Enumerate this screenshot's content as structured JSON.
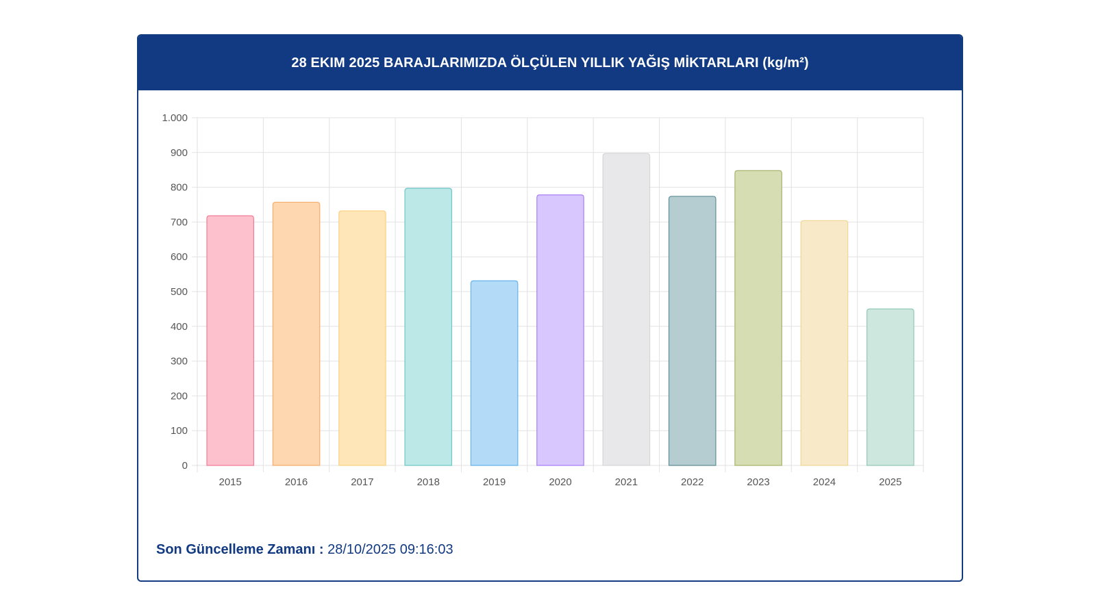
{
  "colors": {
    "header_bg": "#113a82",
    "grid": "#e2e2e2",
    "axis_text": "#555555"
  },
  "footer": {
    "label": "Son Güncelleme Zamanı :",
    "value": "28/10/2025 09:16:03"
  },
  "chart_data": {
    "type": "bar",
    "title": "28 EKIM 2025 BARAJLARIMIZDA ÖLÇÜLEN YILLIK YAĞIŞ MİKTARLARI (kg/m²)",
    "categories": [
      "2015",
      "2016",
      "2017",
      "2018",
      "2019",
      "2020",
      "2021",
      "2022",
      "2023",
      "2024",
      "2025"
    ],
    "values": [
      718,
      757,
      732,
      797,
      531,
      778,
      897,
      774,
      848,
      704,
      450
    ],
    "ylim": [
      0,
      1000
    ],
    "ytick_values": [
      0,
      100,
      200,
      300,
      400,
      500,
      600,
      700,
      800,
      900,
      1000
    ],
    "ytick_labels": [
      "0",
      "100",
      "200",
      "300",
      "400",
      "500",
      "600",
      "700",
      "800",
      "900",
      "1.000"
    ],
    "xlabel": "",
    "ylabel": "",
    "grid": true,
    "bar_fills": [
      "#fdc0cd",
      "#fed7b0",
      "#fee6b9",
      "#bde8e8",
      "#b3dbf8",
      "#d8c7fe",
      "#e8e8ea",
      "#b5cdd1",
      "#d7ddb3",
      "#f8e9c8",
      "#cde6de"
    ],
    "bar_strokes": [
      "#f37c97",
      "#f7ad6a",
      "#f9d285",
      "#6dc8c8",
      "#64b3ec",
      "#a97ef5",
      "#d6d6d8",
      "#5f8e95",
      "#a7b36d",
      "#f0d698",
      "#93c9b6"
    ]
  }
}
